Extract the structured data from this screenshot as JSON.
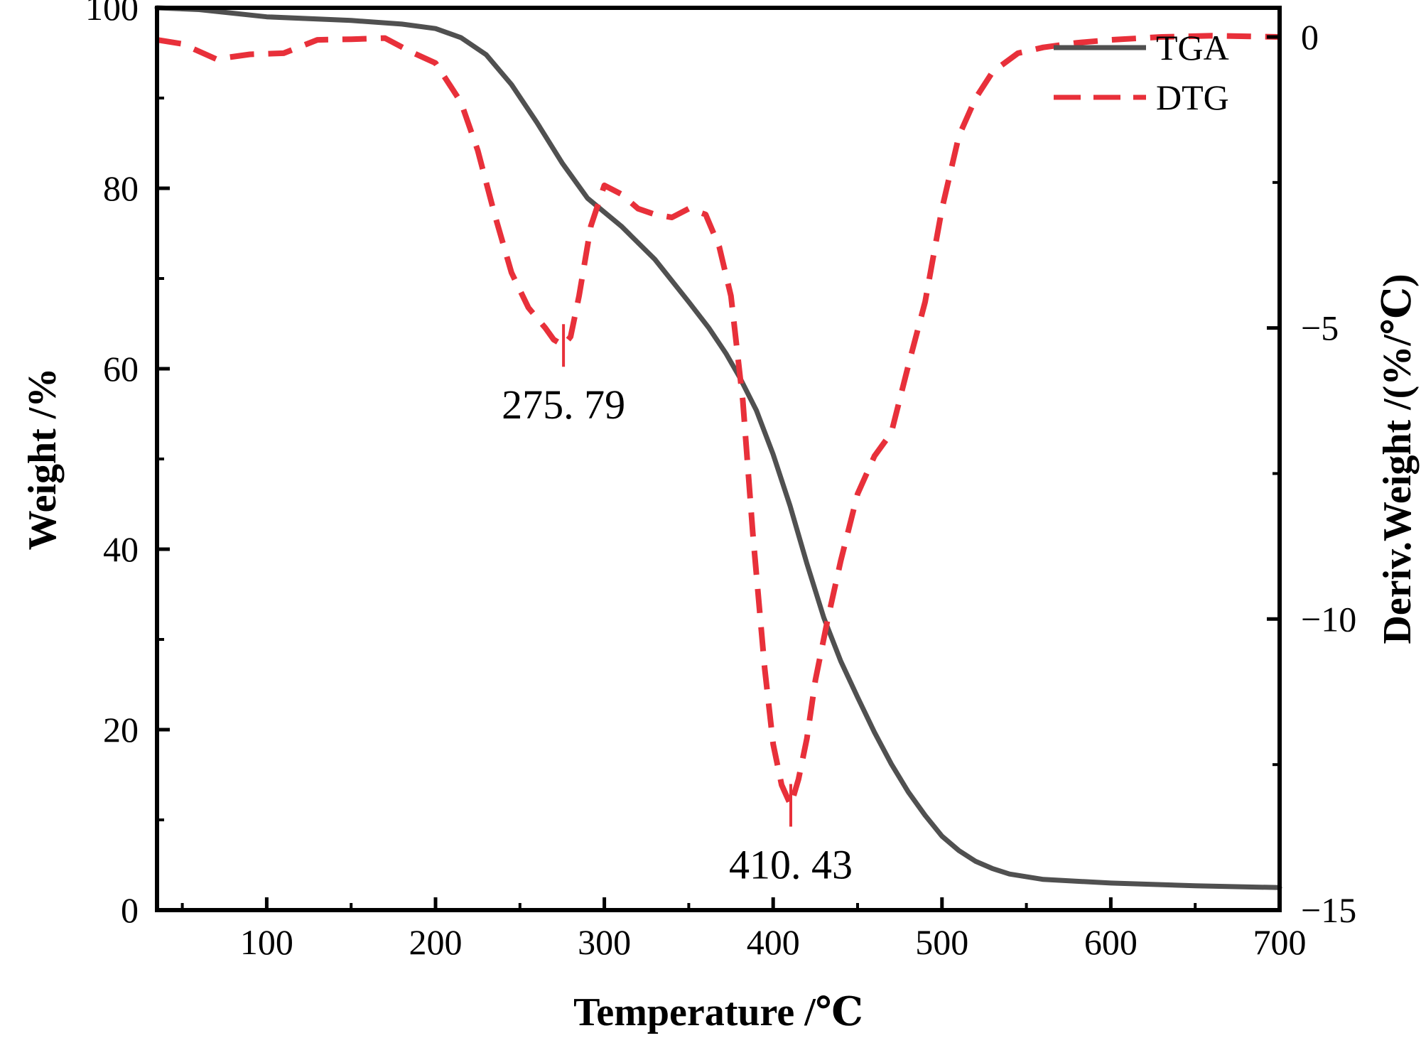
{
  "chart_data": {
    "type": "line",
    "title": "",
    "xlabel": "Temperature /℃",
    "ylabel": "Weight /%",
    "y2label": "Deriv.Weight /(%/℃)",
    "xlim": [
      35,
      700
    ],
    "ylim": [
      0,
      100
    ],
    "y2lim": [
      -15,
      0.5
    ],
    "x_ticks": [
      100,
      200,
      300,
      400,
      500,
      600,
      700
    ],
    "x_tick_labels": [
      "100",
      "200",
      "300",
      "400",
      "500",
      "600",
      "700"
    ],
    "y_ticks": [
      0,
      20,
      40,
      60,
      80,
      100
    ],
    "y_tick_labels": [
      "0",
      "20",
      "40",
      "60",
      "80",
      "100"
    ],
    "y2_ticks": [
      -15,
      -10,
      -5,
      0
    ],
    "y2_tick_labels": [
      "−15",
      "−10",
      "−5",
      "0"
    ],
    "grid": false,
    "legend_position": "top-right",
    "colors": {
      "TGA": "#505050",
      "DTG": "#e8303a"
    },
    "series": [
      {
        "name": "TGA",
        "axis": "left",
        "style": "solid",
        "x": [
          35,
          60,
          100,
          150,
          180,
          200,
          215,
          230,
          245,
          260,
          275,
          290,
          310,
          330,
          350,
          362,
          372,
          380,
          390,
          400,
          410,
          420,
          430,
          440,
          450,
          460,
          470,
          480,
          490,
          500,
          510,
          520,
          530,
          540,
          560,
          600,
          650,
          700
        ],
        "y": [
          100,
          99.8,
          99.0,
          98.6,
          98.2,
          97.7,
          96.7,
          94.8,
          91.5,
          87.3,
          82.8,
          78.9,
          75.8,
          72.1,
          67.4,
          64.5,
          61.7,
          59.1,
          55.4,
          50.5,
          44.8,
          38.4,
          32.4,
          27.6,
          23.6,
          19.7,
          16.2,
          13.1,
          10.5,
          8.2,
          6.6,
          5.4,
          4.6,
          4.0,
          3.4,
          3.0,
          2.7,
          2.5
        ]
      },
      {
        "name": "DTG",
        "axis": "right",
        "style": "dashed",
        "x": [
          35,
          50,
          70,
          90,
          110,
          130,
          150,
          170,
          185,
          200,
          215,
          225,
          235,
          245,
          255,
          265,
          270,
          275.79,
          280,
          285,
          292,
          300,
          310,
          320,
          330,
          340,
          350,
          360,
          368,
          375,
          382,
          388,
          395,
          400,
          405,
          410.43,
          415,
          420,
          425,
          432,
          440,
          450,
          460,
          470,
          480,
          490,
          500,
          510,
          520,
          530,
          545,
          560,
          580,
          600,
          630,
          660,
          700
        ],
        "y": [
          -0.05,
          -0.12,
          -0.38,
          -0.3,
          -0.28,
          -0.05,
          -0.04,
          -0.02,
          -0.25,
          -0.45,
          -1.12,
          -1.95,
          -3.05,
          -4.05,
          -4.65,
          -5.0,
          -5.2,
          -5.3,
          -5.15,
          -4.45,
          -3.25,
          -2.55,
          -2.7,
          -2.95,
          -3.05,
          -3.1,
          -2.95,
          -3.05,
          -3.6,
          -4.45,
          -6.25,
          -8.55,
          -10.85,
          -12.15,
          -12.85,
          -13.2,
          -12.75,
          -12.05,
          -11.05,
          -10.05,
          -9.0,
          -7.85,
          -7.2,
          -6.8,
          -5.65,
          -4.55,
          -2.95,
          -1.7,
          -1.05,
          -0.6,
          -0.28,
          -0.18,
          -0.1,
          -0.05,
          0.0,
          0.02,
          0.0
        ]
      }
    ],
    "annotations": [
      {
        "text": "275. 79",
        "series": "DTG",
        "x": 275.79,
        "y": -5.3
      },
      {
        "text": "410. 43",
        "series": "DTG",
        "x": 410.43,
        "y": -13.2
      }
    ]
  }
}
